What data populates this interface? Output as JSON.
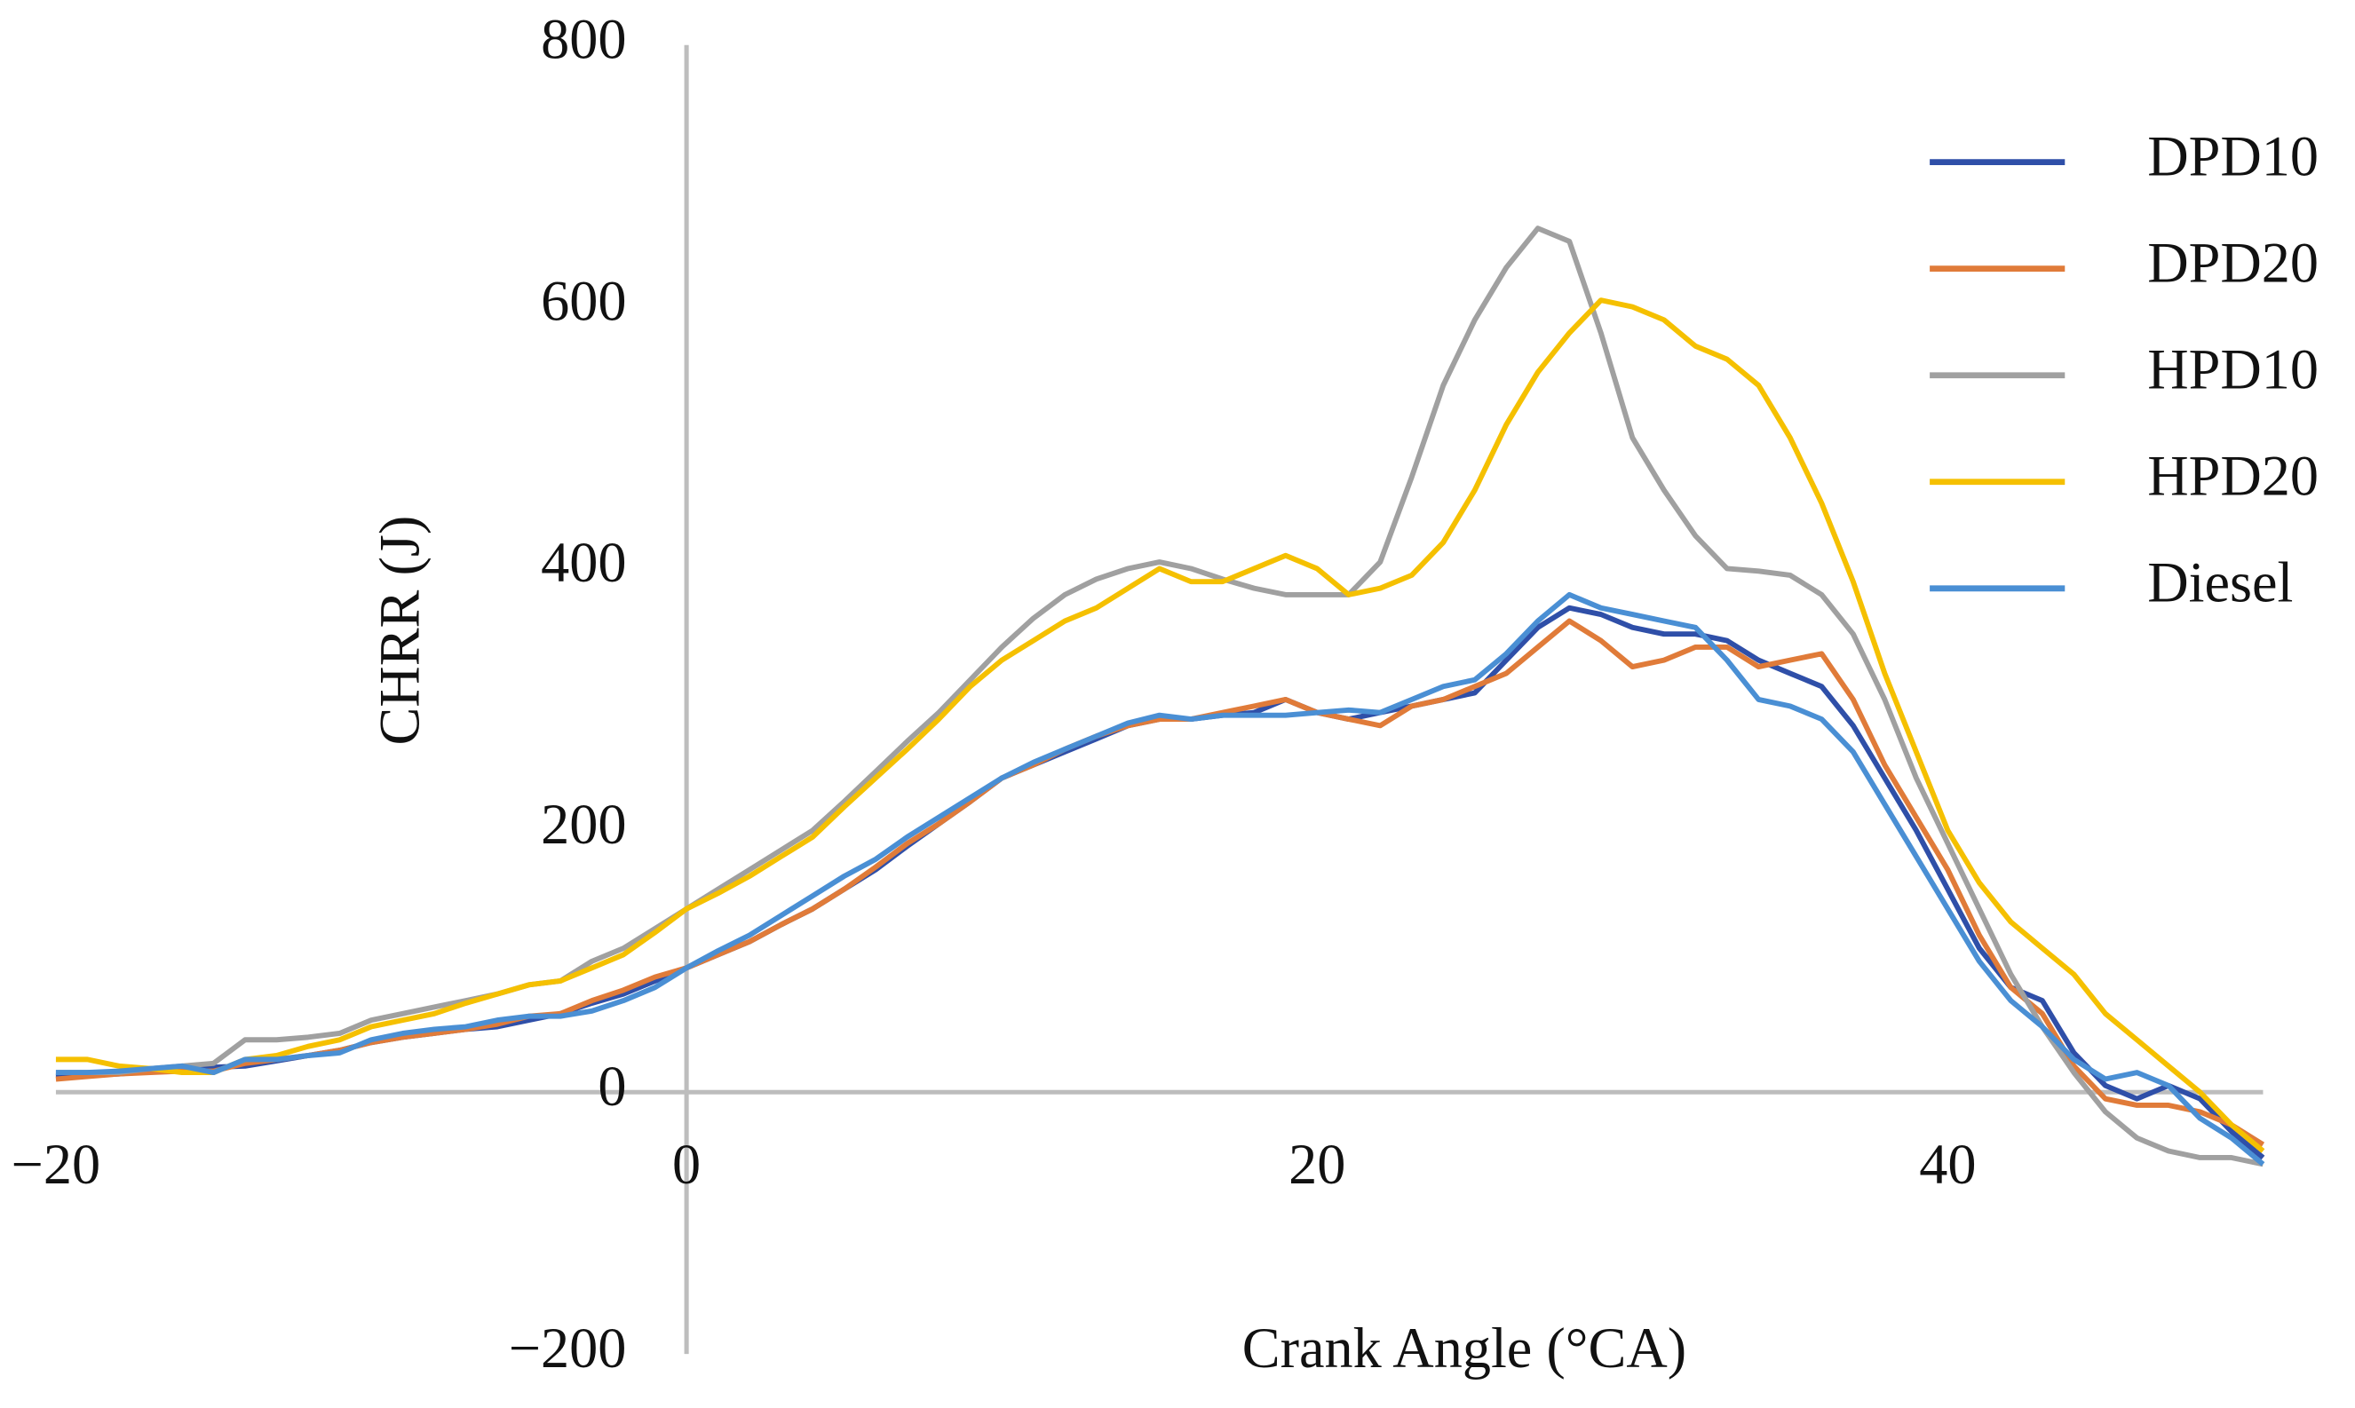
{
  "chart_data": {
    "type": "line",
    "x_label": "Crank Angle (°CA)",
    "y_label": "CHRR (J)",
    "x": [
      -20,
      -19,
      -18,
      -17,
      -16,
      -15,
      -14,
      -13,
      -12,
      -11,
      -10,
      -9,
      -8,
      -7,
      -6,
      -5,
      -4,
      -3,
      -2,
      -1,
      0,
      1,
      2,
      3,
      4,
      5,
      6,
      7,
      8,
      9,
      10,
      11,
      12,
      13,
      14,
      15,
      16,
      17,
      18,
      19,
      20,
      21,
      22,
      23,
      24,
      25,
      26,
      27,
      28,
      29,
      30,
      31,
      32,
      33,
      34,
      35,
      36,
      37,
      38,
      39,
      40,
      41,
      42,
      43,
      44,
      45,
      46,
      47,
      48,
      49,
      50
    ],
    "series": [
      {
        "name": "DPD10",
        "color": "#2f4fa8",
        "values": [
          12,
          13,
          14,
          16,
          18,
          19,
          20,
          24,
          28,
          32,
          38,
          42,
          45,
          48,
          50,
          55,
          60,
          68,
          75,
          85,
          95,
          105,
          115,
          128,
          140,
          155,
          170,
          188,
          205,
          222,
          240,
          250,
          260,
          270,
          280,
          285,
          285,
          288,
          290,
          300,
          290,
          285,
          290,
          295,
          300,
          305,
          330,
          355,
          370,
          365,
          355,
          350,
          350,
          345,
          330,
          320,
          310,
          280,
          240,
          200,
          155,
          110,
          80,
          70,
          30,
          5,
          -5,
          5,
          -5,
          -30,
          -50
        ]
      },
      {
        "name": "DPD20",
        "color": "#e07b39",
        "values": [
          10,
          12,
          14,
          15,
          16,
          16,
          22,
          25,
          28,
          32,
          38,
          42,
          45,
          48,
          52,
          58,
          60,
          70,
          78,
          88,
          95,
          105,
          115,
          128,
          140,
          155,
          172,
          190,
          205,
          222,
          240,
          250,
          262,
          272,
          280,
          285,
          285,
          290,
          295,
          300,
          290,
          285,
          280,
          295,
          300,
          310,
          320,
          340,
          360,
          345,
          325,
          330,
          340,
          340,
          325,
          330,
          335,
          300,
          250,
          210,
          170,
          120,
          80,
          60,
          20,
          -5,
          -10,
          -10,
          -15,
          -25,
          -40
        ]
      },
      {
        "name": "HPD10",
        "color": "#a0a0a0",
        "values": [
          15,
          15,
          15,
          18,
          20,
          22,
          40,
          40,
          42,
          45,
          55,
          60,
          65,
          70,
          75,
          82,
          85,
          100,
          110,
          125,
          140,
          155,
          170,
          185,
          200,
          222,
          245,
          268,
          290,
          315,
          340,
          362,
          380,
          392,
          400,
          405,
          400,
          392,
          385,
          380,
          380,
          380,
          405,
          470,
          540,
          590,
          630,
          660,
          650,
          580,
          500,
          460,
          425,
          400,
          398,
          395,
          380,
          350,
          300,
          240,
          190,
          140,
          90,
          50,
          15,
          -15,
          -35,
          -45,
          -50,
          -50,
          -55
        ]
      },
      {
        "name": "HPD20",
        "color": "#f5c000",
        "values": [
          25,
          25,
          20,
          18,
          15,
          15,
          25,
          28,
          35,
          40,
          50,
          55,
          60,
          68,
          75,
          82,
          85,
          95,
          105,
          122,
          140,
          152,
          165,
          180,
          195,
          218,
          240,
          262,
          285,
          310,
          330,
          345,
          360,
          370,
          385,
          400,
          390,
          390,
          400,
          410,
          400,
          380,
          385,
          395,
          420,
          460,
          510,
          550,
          580,
          605,
          600,
          590,
          570,
          560,
          540,
          500,
          450,
          390,
          320,
          260,
          200,
          160,
          130,
          110,
          90,
          60,
          40,
          20,
          0,
          -25,
          -45
        ]
      },
      {
        "name": "Diesel",
        "color": "#4a8fd4",
        "values": [
          15,
          15,
          16,
          18,
          20,
          15,
          25,
          25,
          28,
          30,
          40,
          45,
          48,
          50,
          55,
          58,
          58,
          62,
          70,
          80,
          95,
          108,
          120,
          135,
          150,
          165,
          178,
          195,
          210,
          225,
          240,
          252,
          262,
          272,
          282,
          288,
          285,
          288,
          288,
          288,
          290,
          292,
          290,
          300,
          310,
          315,
          335,
          360,
          380,
          370,
          365,
          360,
          355,
          330,
          300,
          295,
          285,
          260,
          220,
          180,
          140,
          100,
          70,
          50,
          25,
          10,
          15,
          5,
          -20,
          -35,
          -55
        ]
      }
    ],
    "xlim": [
      -20,
      50
    ],
    "xticks": [
      {
        "value": -20,
        "label": "−20"
      },
      0,
      20,
      40
    ],
    "ylim": [
      -200,
      800
    ],
    "yticks": [
      {
        "value": -200,
        "label": "−200"
      },
      0,
      200,
      400,
      600,
      800
    ],
    "legend": "right",
    "grid": false
  }
}
